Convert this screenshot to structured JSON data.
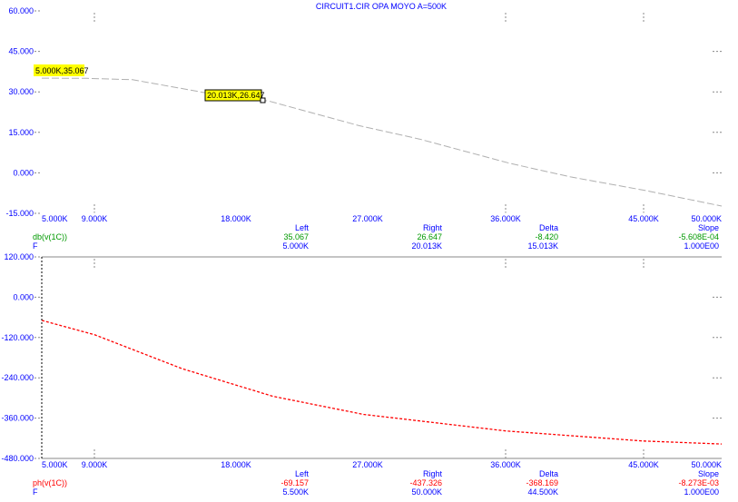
{
  "title": "CIRCUIT1.CIR OPA MOYO A=500K",
  "chart_data": [
    {
      "type": "line",
      "ylim": [
        -15,
        60
      ],
      "xlim": [
        5,
        50
      ],
      "x_unit": "K",
      "ytick_labels": [
        "60.000",
        "45.000",
        "30.000",
        "15.000",
        "0.000",
        "-15.000"
      ],
      "xtick_labels": [
        "5.000K",
        "9.000K",
        "18.000K",
        "27.000K",
        "36.000K",
        "45.000K",
        "50.000K"
      ],
      "series": [
        {
          "name": "db(v(1C))",
          "color": "#b0b0b0",
          "x": [
            5,
            8,
            11,
            14,
            17,
            20,
            26,
            30,
            36,
            40,
            45,
            50
          ],
          "y": [
            35.07,
            35.0,
            34.5,
            31.5,
            28.5,
            26.65,
            17.5,
            12.5,
            3.5,
            -1.5,
            -6.6,
            -12.3
          ]
        }
      ],
      "cursor_labels": [
        "5.000K,35.067",
        "20.013K,26.647"
      ],
      "readout": {
        "headers": [
          "Left",
          "Right",
          "Delta",
          "Slope"
        ],
        "rows": [
          {
            "name": "db(v(1C))",
            "values": [
              "35.067",
              "26.647",
              "-8.420",
              "-5.608E-04"
            ]
          },
          {
            "name": "F",
            "values": [
              "5.000K",
              "20.013K",
              "15.013K",
              "1.000E00"
            ]
          }
        ]
      }
    },
    {
      "type": "line",
      "ylim": [
        -480,
        120
      ],
      "xlim": [
        5,
        50
      ],
      "x_unit": "K",
      "ytick_labels": [
        "120.000",
        "0.000",
        "-120.000",
        "-240.000",
        "-360.000",
        "-480.000"
      ],
      "xtick_labels": [
        "5.000K",
        "9.000K",
        "18.000K",
        "27.000K",
        "36.000K",
        "45.000K",
        "50.000K"
      ],
      "series": [
        {
          "name": "ph(v(1C))",
          "color": "#ff0000",
          "x": [
            5,
            8.5,
            14.3,
            20.3,
            26.3,
            35.7,
            44.8,
            50
          ],
          "y": [
            -69,
            -112,
            -213,
            -295,
            -349,
            -398,
            -428,
            -437
          ]
        }
      ],
      "readout": {
        "headers": [
          "Left",
          "Right",
          "Delta",
          "Slope"
        ],
        "rows": [
          {
            "name": "ph(v(1C))",
            "values": [
              "-69.157",
              "-437.326",
              "-368.169",
              "-8.273E-03"
            ]
          },
          {
            "name": "F",
            "values": [
              "5.500K",
              "50.000K",
              "44.500K",
              "1.000E00"
            ]
          }
        ]
      }
    }
  ]
}
